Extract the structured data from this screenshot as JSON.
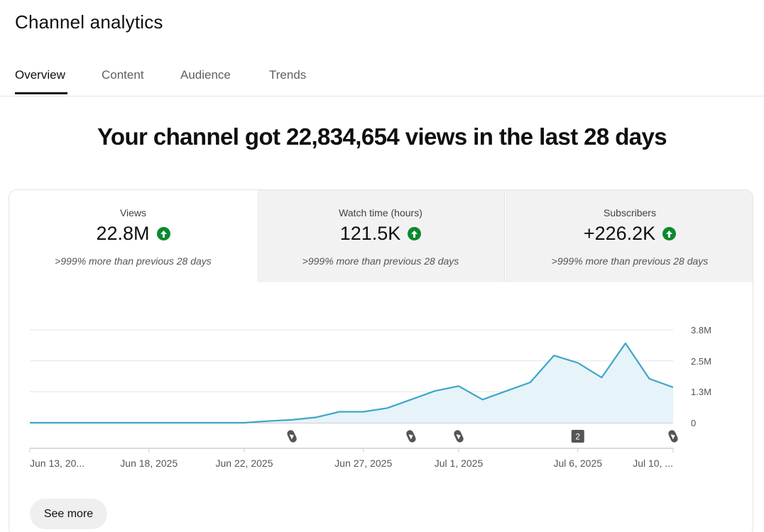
{
  "page": {
    "title": "Channel analytics",
    "tabs": [
      {
        "label": "Overview",
        "active": true
      },
      {
        "label": "Content",
        "active": false
      },
      {
        "label": "Audience",
        "active": false
      },
      {
        "label": "Trends",
        "active": false
      }
    ],
    "headline": "Your channel got 22,834,654 views in the last 28 days"
  },
  "metrics": [
    {
      "label": "Views",
      "value": "22.8M",
      "trend_icon": "arrow-up-icon",
      "comparison": ">999% more than previous 28 days",
      "selected": true
    },
    {
      "label": "Watch time (hours)",
      "value": "121.5K",
      "trend_icon": "arrow-up-icon",
      "comparison": ">999% more than previous 28 days",
      "selected": false
    },
    {
      "label": "Subscribers",
      "value": "+226.2K",
      "trend_icon": "arrow-up-icon",
      "comparison": ">999% more than previous 28 days",
      "selected": false
    }
  ],
  "colors": {
    "line": "#3ea6c8",
    "area": "#e6f3f9",
    "positive": "#0b8a2d",
    "marker": "#555555"
  },
  "chart_data": {
    "type": "area",
    "title": "",
    "xlabel": "",
    "ylabel": "",
    "ylim": [
      0,
      3800000
    ],
    "y_ticks": [
      {
        "value": 0,
        "label": "0"
      },
      {
        "value": 1270000,
        "label": "1.3M"
      },
      {
        "value": 2530000,
        "label": "2.5M"
      },
      {
        "value": 3800000,
        "label": "3.8M"
      }
    ],
    "x_ticks": [
      {
        "index": 0,
        "label": "Jun 13, 20..."
      },
      {
        "index": 5,
        "label": "Jun 18, 2025"
      },
      {
        "index": 9,
        "label": "Jun 22, 2025"
      },
      {
        "index": 14,
        "label": "Jun 27, 2025"
      },
      {
        "index": 18,
        "label": "Jul 1, 2025"
      },
      {
        "index": 23,
        "label": "Jul 6, 2025"
      },
      {
        "index": 27,
        "label": "Jul 10, ..."
      }
    ],
    "x": [
      "Jun 13",
      "Jun 14",
      "Jun 15",
      "Jun 16",
      "Jun 17",
      "Jun 18",
      "Jun 19",
      "Jun 20",
      "Jun 21",
      "Jun 22",
      "Jun 23",
      "Jun 24",
      "Jun 25",
      "Jun 26",
      "Jun 27",
      "Jun 28",
      "Jun 29",
      "Jun 30",
      "Jul 1",
      "Jul 2",
      "Jul 3",
      "Jul 4",
      "Jul 5",
      "Jul 6",
      "Jul 7",
      "Jul 8",
      "Jul 9",
      "Jul 10"
    ],
    "series": [
      {
        "values": [
          0,
          0,
          0,
          0,
          0,
          0,
          0,
          0,
          0,
          0,
          70000,
          120000,
          220000,
          450000,
          450000,
          600000,
          950000,
          1300000,
          1500000,
          950000,
          1300000,
          1650000,
          2750000,
          2450000,
          1850000,
          3250000,
          1800000,
          1450000
        ]
      }
    ],
    "markers": [
      {
        "index": 11,
        "type": "shorts",
        "label": ""
      },
      {
        "index": 16,
        "type": "shorts",
        "label": ""
      },
      {
        "index": 18,
        "type": "shorts",
        "label": ""
      },
      {
        "index": 23,
        "type": "count",
        "label": "2"
      },
      {
        "index": 27,
        "type": "shorts",
        "label": ""
      }
    ],
    "grid": true
  },
  "footer": {
    "see_more_label": "See more"
  }
}
